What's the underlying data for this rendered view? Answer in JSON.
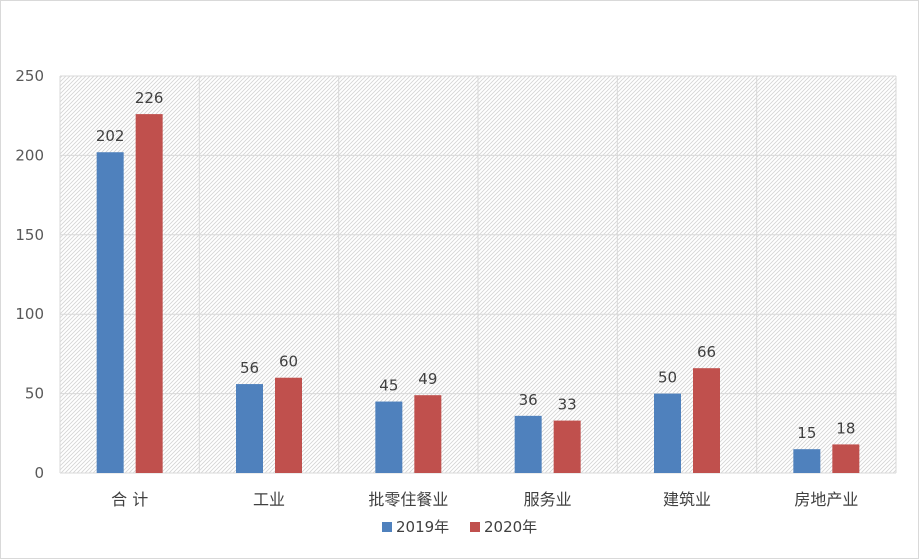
{
  "chart_data": {
    "type": "bar",
    "title": "",
    "xlabel": "",
    "ylabel": "",
    "categories": [
      "合  计",
      "工业",
      "批零住餐业",
      "服务业",
      "建筑业",
      "房地产业"
    ],
    "series": [
      {
        "name": "2019年",
        "values": [
          202,
          56,
          45,
          36,
          50,
          15
        ],
        "color": "#4f81bd"
      },
      {
        "name": "2020年",
        "values": [
          226,
          60,
          49,
          33,
          66,
          18
        ],
        "color": "#c0504d"
      }
    ],
    "ylim": [
      0,
      250
    ],
    "yticks": [
      0,
      50,
      100,
      150,
      200,
      250
    ],
    "grid": true,
    "plot_pattern": "diagonal-hatch",
    "legend": "bottom-center",
    "data_labels": true
  }
}
